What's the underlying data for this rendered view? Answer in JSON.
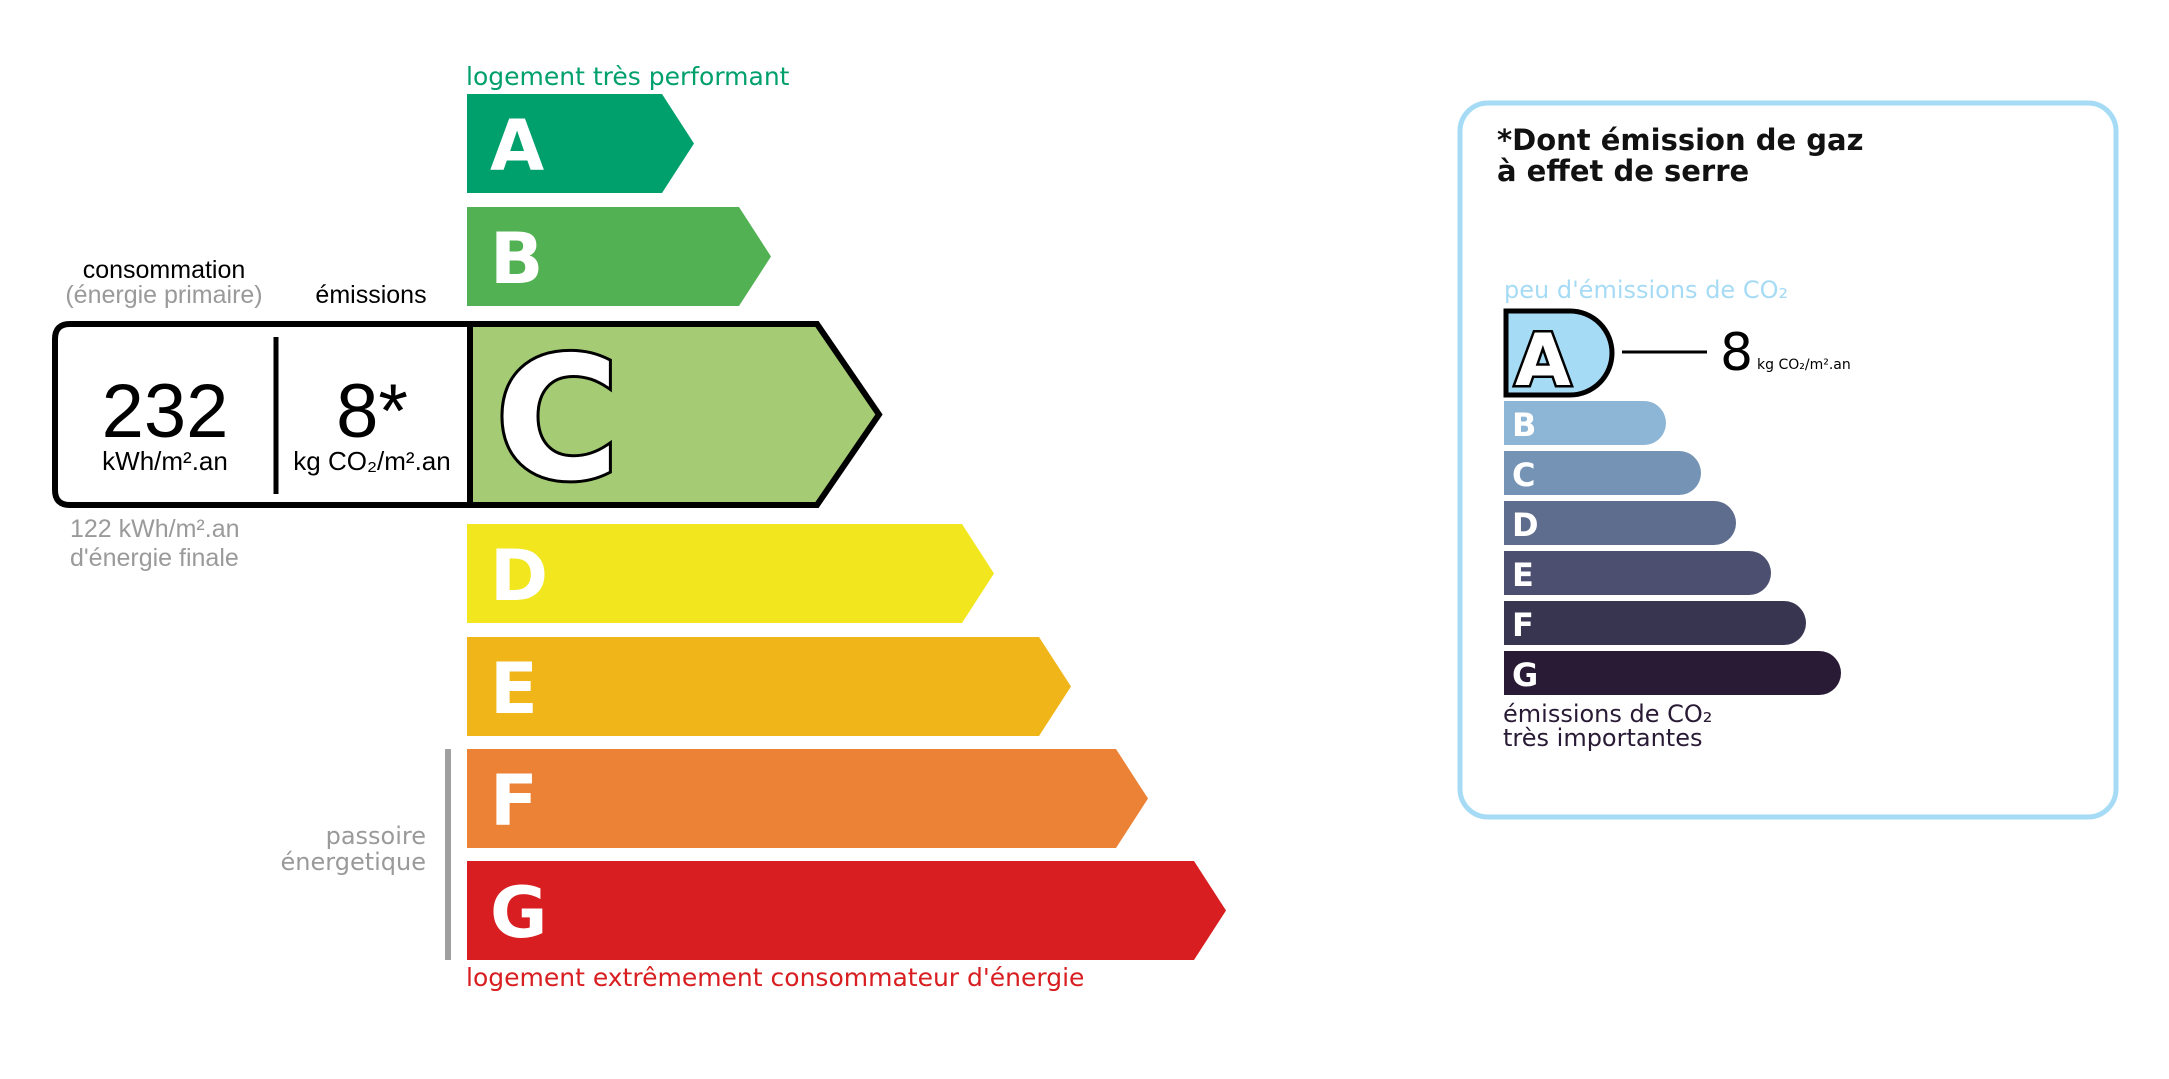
{
  "energy": {
    "top_label": "logement très performant",
    "bottom_label": "logement extrêmement consommateur d'énergie",
    "passoire_line1": "passoire",
    "passoire_line2": "énergetique",
    "current_class": "C",
    "classes": [
      {
        "letter": "A",
        "color": "#00a06d"
      },
      {
        "letter": "B",
        "color": "#52b153"
      },
      {
        "letter": "C",
        "color": "#a5cc74"
      },
      {
        "letter": "D",
        "color": "#f2e61f"
      },
      {
        "letter": "E",
        "color": "#f0b519"
      },
      {
        "letter": "F",
        "color": "#eb8235"
      },
      {
        "letter": "G",
        "color": "#d81e20"
      }
    ],
    "top_color": "#00a06d",
    "bottom_color": "#d81e20",
    "consumption_label": "consommation",
    "consumption_sublabel": "(énergie primaire)",
    "emissions_label": "émissions",
    "consumption_value": "232",
    "consumption_unit": "kWh/m².an",
    "emissions_value": "8*",
    "emissions_unit": "kg CO₂/m².an",
    "final_energy_line1": "122 kWh/m².an",
    "final_energy_line2": "d'énergie finale"
  },
  "ges": {
    "title_line1": "*Dont émission de gaz",
    "title_line2": "à effet de serre",
    "top_label": "peu d'émissions de CO₂",
    "bottom_line1": "émissions de CO₂",
    "bottom_line2": "très importantes",
    "current_class": "A",
    "value": "8",
    "unit": "kg CO₂/m².an",
    "border_color": "#a6dbf5",
    "classes": [
      {
        "letter": "A",
        "color": "#a6dbf5"
      },
      {
        "letter": "B",
        "color": "#8db5d5"
      },
      {
        "letter": "C",
        "color": "#7593b5"
      },
      {
        "letter": "D",
        "color": "#5e6c8e"
      },
      {
        "letter": "E",
        "color": "#4c4f6f"
      },
      {
        "letter": "F",
        "color": "#383551"
      },
      {
        "letter": "G",
        "color": "#291b35"
      }
    ]
  }
}
